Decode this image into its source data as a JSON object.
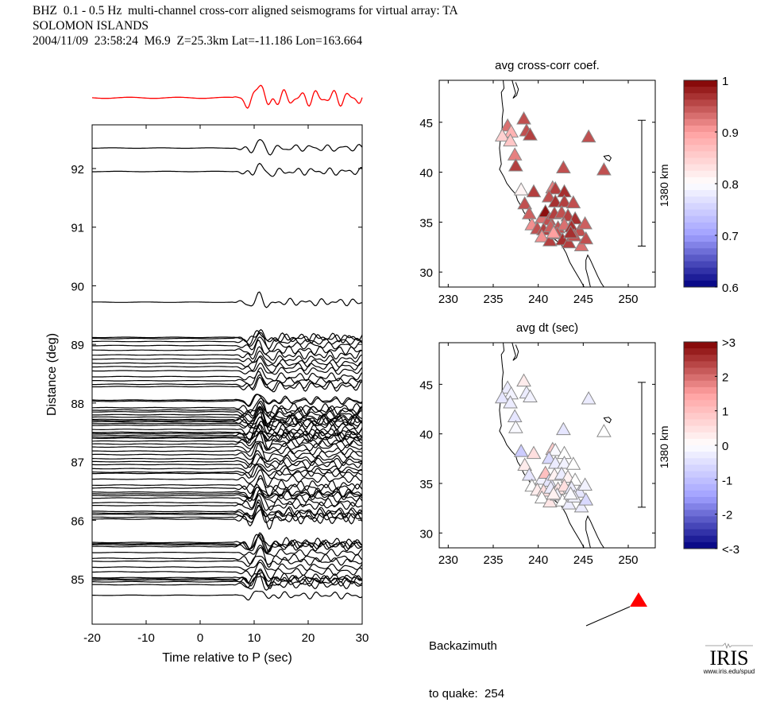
{
  "header": {
    "line1": "BHZ  0.1 - 0.5 Hz  multi-channel cross-corr aligned seismograms for virtual array: TA",
    "line2": "SOLOMON ISLANDS",
    "line3": "2004/11/09  23:58:24  M6.9  Z=25.3km Lat=-11.186 Lon=163.664"
  },
  "chart_data": [
    {
      "type": "line",
      "name": "seismogram-section",
      "title": "",
      "xlabel": "Time relative to P (sec)",
      "ylabel": "Distance (deg)",
      "xlim": [
        -20,
        30
      ],
      "ylim": [
        84.45,
        92.9
      ],
      "xticks": [
        -20,
        -10,
        0,
        10,
        20,
        30
      ],
      "xtick_labels": [
        "-20",
        "-10",
        "0",
        "10",
        "20",
        "30"
      ],
      "yticks": [
        85,
        86,
        87,
        88,
        89,
        90,
        91,
        92
      ],
      "ytick_labels": [
        "85",
        "86",
        "87",
        "88",
        "89",
        "90",
        "91",
        "92"
      ],
      "stack_trace": {
        "label": "stacked beam",
        "color": "#ff0000",
        "arrival_time_sec": 11
      },
      "trace_color": "#000000",
      "trace_distances_deg": [
        92.35,
        91.95,
        89.72,
        89.12,
        89.1,
        89.05,
        88.98,
        88.9,
        88.82,
        88.75,
        88.68,
        88.62,
        88.55,
        88.45,
        88.38,
        88.32,
        88.28,
        88.05,
        88.03,
        87.92,
        87.88,
        87.85,
        87.8,
        87.76,
        87.72,
        87.7,
        87.68,
        87.65,
        87.62,
        87.55,
        87.5,
        87.48,
        87.45,
        87.42,
        87.4,
        87.35,
        87.3,
        87.25,
        87.18,
        87.12,
        87.05,
        87.0,
        86.95,
        86.88,
        86.82,
        86.8,
        86.7,
        86.6,
        86.55,
        86.48,
        86.45,
        86.42,
        86.38,
        86.3,
        86.25,
        86.15,
        86.12,
        86.1,
        86.05,
        86.02,
        85.62,
        85.6,
        85.58,
        85.55,
        85.45,
        85.35,
        85.3,
        85.2,
        85.12,
        85.02,
        85.0,
        84.98,
        84.95,
        84.9,
        84.72
      ]
    },
    {
      "type": "scatter",
      "name": "map-cross-corr",
      "title": "avg cross-corr coef.",
      "xlim": [
        229,
        253
      ],
      "ylim": [
        28.5,
        49.2
      ],
      "xticks": [
        230,
        235,
        240,
        245,
        250
      ],
      "yticks": [
        30,
        35,
        40,
        45
      ],
      "scale_bar_label": "1380 km",
      "colorbar": {
        "min": 0.6,
        "max": 1,
        "ticks": [
          1,
          0.9,
          0.8,
          0.7,
          0.6
        ],
        "tick_labels": [
          "1",
          "0.9",
          "0.8",
          "0.7",
          "0.6"
        ]
      },
      "stations": [
        [
          236.6,
          44.6,
          0.93
        ],
        [
          237.0,
          44.0,
          0.88
        ],
        [
          236.0,
          43.6,
          0.85
        ],
        [
          236.9,
          43.1,
          0.86
        ],
        [
          238.4,
          45.3,
          0.95
        ],
        [
          238.7,
          44.1,
          0.95
        ],
        [
          239.1,
          43.7,
          0.96
        ],
        [
          237.4,
          41.7,
          0.92
        ],
        [
          237.5,
          40.6,
          0.96
        ],
        [
          245.6,
          43.5,
          0.95
        ],
        [
          242.8,
          40.4,
          0.95
        ],
        [
          247.3,
          40.2,
          0.95
        ],
        [
          238.1,
          38.2,
          0.81
        ],
        [
          239.5,
          38.0,
          0.96
        ],
        [
          241.6,
          38.4,
          0.92
        ],
        [
          241.9,
          38.3,
          0.96
        ],
        [
          242.9,
          38.0,
          0.97
        ],
        [
          238.5,
          36.8,
          0.95
        ],
        [
          241.2,
          37.5,
          0.95
        ],
        [
          241.9,
          37.0,
          0.97
        ],
        [
          242.9,
          37.0,
          0.96
        ],
        [
          243.9,
          36.9,
          0.95
        ],
        [
          239.0,
          35.8,
          0.94
        ],
        [
          240.4,
          35.4,
          0.93
        ],
        [
          240.8,
          36.0,
          0.99
        ],
        [
          241.2,
          35.2,
          0.95
        ],
        [
          241.8,
          35.8,
          0.96
        ],
        [
          242.6,
          35.9,
          0.95
        ],
        [
          243.3,
          35.6,
          0.96
        ],
        [
          244.1,
          35.3,
          0.97
        ],
        [
          239.3,
          34.7,
          0.91
        ],
        [
          239.9,
          34.3,
          0.95
        ],
        [
          240.6,
          34.2,
          0.96
        ],
        [
          241.4,
          34.5,
          0.94
        ],
        [
          242.2,
          34.4,
          0.95
        ],
        [
          242.9,
          34.7,
          0.93
        ],
        [
          243.7,
          34.5,
          0.97
        ],
        [
          244.6,
          34.1,
          0.95
        ],
        [
          245.2,
          34.8,
          0.94
        ],
        [
          240.4,
          33.5,
          0.91
        ],
        [
          241.3,
          33.1,
          0.96
        ],
        [
          242.1,
          33.8,
          0.95
        ],
        [
          242.7,
          33.2,
          0.97
        ],
        [
          243.4,
          32.9,
          0.96
        ],
        [
          244.0,
          33.6,
          0.95
        ],
        [
          244.8,
          32.6,
          0.93
        ],
        [
          245.3,
          33.3,
          0.95
        ],
        [
          241.7,
          33.9,
          0.9
        ],
        [
          243.6,
          33.9,
          0.97
        ]
      ]
    },
    {
      "type": "scatter",
      "name": "map-dt",
      "title": "avg dt (sec)",
      "xlim": [
        229,
        253
      ],
      "ylim": [
        28.5,
        49.2
      ],
      "xticks": [
        230,
        235,
        240,
        245,
        250
      ],
      "yticks": [
        30,
        35,
        40,
        45
      ],
      "scale_bar_label": "1380 km",
      "colorbar": {
        "min": -3,
        "max": 3,
        "ticks": [
          3,
          2,
          1,
          0,
          -1,
          -2,
          -3
        ],
        "tick_labels": [
          ">3",
          "2",
          "1",
          "0",
          "-1",
          "-2",
          "<-3"
        ]
      },
      "stations": [
        [
          236.6,
          44.6,
          -0.3
        ],
        [
          237.0,
          44.0,
          -0.2
        ],
        [
          236.0,
          43.6,
          -0.4
        ],
        [
          236.9,
          43.1,
          -0.3
        ],
        [
          238.4,
          45.3,
          0.3
        ],
        [
          238.7,
          44.1,
          -0.3
        ],
        [
          239.1,
          43.7,
          -0.2
        ],
        [
          237.4,
          41.7,
          -0.4
        ],
        [
          237.5,
          40.6,
          -0.1
        ],
        [
          245.6,
          43.5,
          -0.3
        ],
        [
          242.8,
          40.4,
          -0.4
        ],
        [
          247.3,
          40.2,
          0.0
        ],
        [
          238.1,
          38.2,
          -0.8
        ],
        [
          239.5,
          38.0,
          0.5
        ],
        [
          241.6,
          38.4,
          0.8
        ],
        [
          241.9,
          38.3,
          -0.1
        ],
        [
          242.9,
          38.0,
          0.0
        ],
        [
          238.5,
          36.8,
          0.3
        ],
        [
          241.2,
          37.5,
          -0.6
        ],
        [
          241.9,
          37.0,
          -0.3
        ],
        [
          242.9,
          37.0,
          -0.2
        ],
        [
          243.9,
          36.9,
          0.0
        ],
        [
          239.0,
          35.8,
          -0.4
        ],
        [
          240.4,
          35.4,
          -0.2
        ],
        [
          240.8,
          36.0,
          1.0
        ],
        [
          241.2,
          35.2,
          -0.4
        ],
        [
          241.8,
          35.8,
          0.2
        ],
        [
          242.6,
          35.9,
          -0.3
        ],
        [
          243.3,
          35.6,
          0.2
        ],
        [
          244.1,
          35.3,
          0.0
        ],
        [
          239.3,
          34.7,
          0.0
        ],
        [
          239.9,
          34.3,
          0.3
        ],
        [
          240.6,
          34.2,
          0.5
        ],
        [
          241.4,
          34.5,
          -0.3
        ],
        [
          242.2,
          34.4,
          0.4
        ],
        [
          242.9,
          34.7,
          0.5
        ],
        [
          243.7,
          34.5,
          -0.3
        ],
        [
          244.6,
          34.1,
          -0.4
        ],
        [
          245.2,
          34.8,
          -0.2
        ],
        [
          240.4,
          33.5,
          0.0
        ],
        [
          241.3,
          33.1,
          0.4
        ],
        [
          242.1,
          33.8,
          -0.2
        ],
        [
          242.7,
          33.2,
          0.0
        ],
        [
          243.4,
          32.9,
          -0.3
        ],
        [
          244.0,
          33.6,
          -0.2
        ],
        [
          244.8,
          32.6,
          -0.3
        ],
        [
          245.3,
          33.3,
          -0.6
        ],
        [
          241.7,
          33.9,
          0.2
        ],
        [
          243.6,
          33.9,
          -0.1
        ]
      ]
    }
  ],
  "backazimuth": {
    "line1": "Backazimuth",
    "line2": "to quake:  254",
    "value_deg": 254,
    "marker_color": "#ff0000"
  },
  "logo": {
    "name": "IRIS",
    "url": "www.iris.edu/spud"
  }
}
